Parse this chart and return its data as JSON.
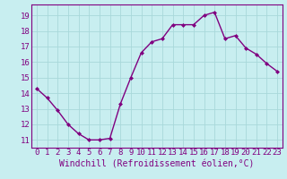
{
  "x": [
    0,
    1,
    2,
    3,
    4,
    5,
    6,
    7,
    8,
    9,
    10,
    11,
    12,
    13,
    14,
    15,
    16,
    17,
    18,
    19,
    20,
    21,
    22,
    23
  ],
  "y": [
    14.3,
    13.7,
    12.9,
    12.0,
    11.4,
    11.0,
    11.0,
    11.1,
    13.3,
    15.0,
    16.6,
    17.3,
    17.5,
    18.4,
    18.4,
    18.4,
    19.0,
    19.2,
    17.5,
    17.7,
    16.9,
    16.5,
    15.9,
    15.4
  ],
  "line_color": "#800080",
  "marker": "D",
  "marker_size": 2.0,
  "background_color": "#c8eef0",
  "grid_color": "#a8d8da",
  "xlabel": "Windchill (Refroidissement éolien,°C)",
  "ylim": [
    10.5,
    19.7
  ],
  "xlim": [
    -0.5,
    23.5
  ],
  "yticks": [
    11,
    12,
    13,
    14,
    15,
    16,
    17,
    18,
    19
  ],
  "xticks": [
    0,
    1,
    2,
    3,
    4,
    5,
    6,
    7,
    8,
    9,
    10,
    11,
    12,
    13,
    14,
    15,
    16,
    17,
    18,
    19,
    20,
    21,
    22,
    23
  ],
  "font_color": "#800080",
  "font_size": 6.5,
  "xlabel_fontsize": 7.0,
  "linewidth": 1.0
}
